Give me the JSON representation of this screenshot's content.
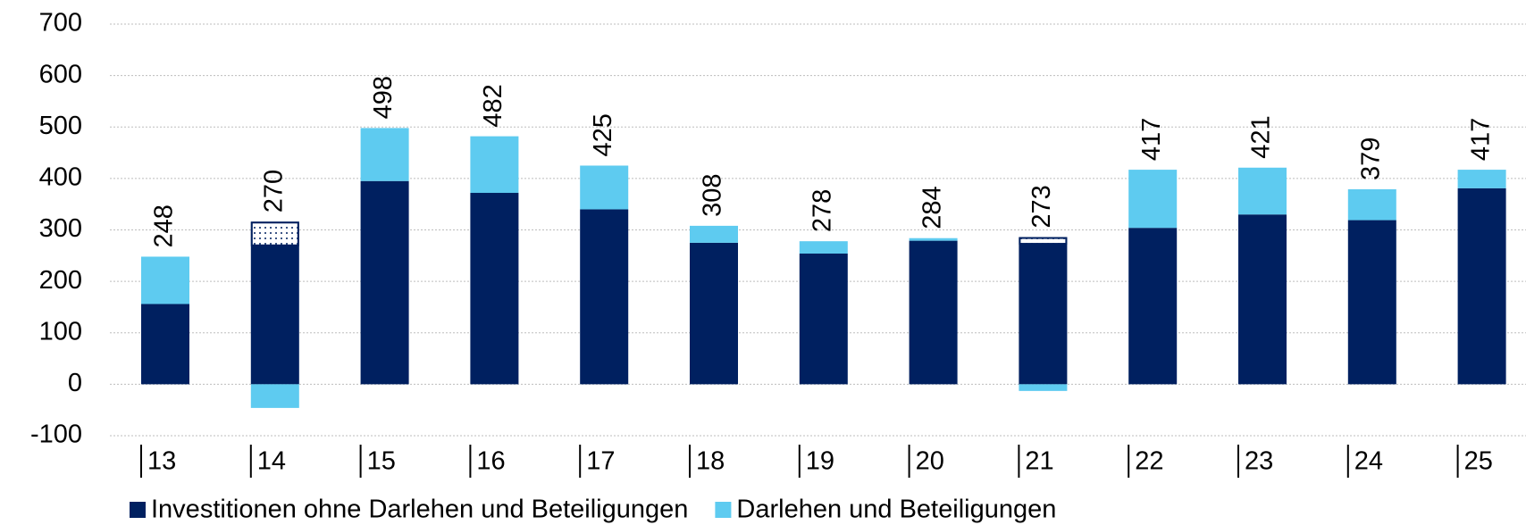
{
  "chart_data": {
    "type": "stacked_bar",
    "categories": [
      "13",
      "14",
      "15",
      "16",
      "17",
      "18",
      "19",
      "20",
      "21",
      "22",
      "23",
      "24",
      "25"
    ],
    "series": [
      {
        "name": "Investitionen ohne Darlehen und Beteiligungen",
        "color": "#002060",
        "values": [
          156,
          316,
          395,
          372,
          340,
          275,
          254,
          279,
          286,
          304,
          330,
          319,
          381
        ]
      },
      {
        "name": "Darlehen und Beteiligungen",
        "color": "#5ecbf0",
        "values": [
          92,
          -46,
          103,
          110,
          85,
          33,
          24,
          5,
          -13,
          113,
          91,
          60,
          36
        ]
      }
    ],
    "totals": [
      248,
      270,
      498,
      482,
      425,
      308,
      278,
      284,
      273,
      417,
      421,
      379,
      417
    ],
    "ylim": [
      -100,
      700
    ],
    "yticks": [
      -100,
      0,
      100,
      200,
      300,
      400,
      500,
      600,
      700
    ],
    "grid": true,
    "legend": "bottom"
  }
}
